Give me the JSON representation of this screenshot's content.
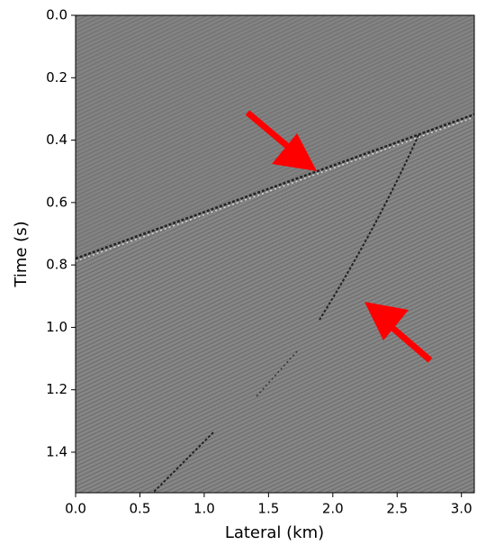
{
  "chart_data": {
    "type": "image",
    "xlabel": "Lateral (km)",
    "ylabel": "Time (s)",
    "xlim": [
      0,
      3.1
    ],
    "ylim": [
      1.53,
      0
    ],
    "xticks": [
      {
        "value": 0,
        "label": "0.0"
      },
      0.5,
      {
        "value": 1,
        "label": "1.0"
      },
      1.5,
      {
        "value": 2,
        "label": "2.0"
      },
      2.5,
      {
        "value": 3,
        "label": "3.0"
      }
    ],
    "yticks": [
      {
        "value": 0,
        "label": "0.0"
      },
      0.2,
      0.4,
      0.6,
      0.8,
      {
        "value": 1,
        "label": "1.0"
      },
      1.2,
      1.4
    ],
    "colormap": "gray"
  }
}
